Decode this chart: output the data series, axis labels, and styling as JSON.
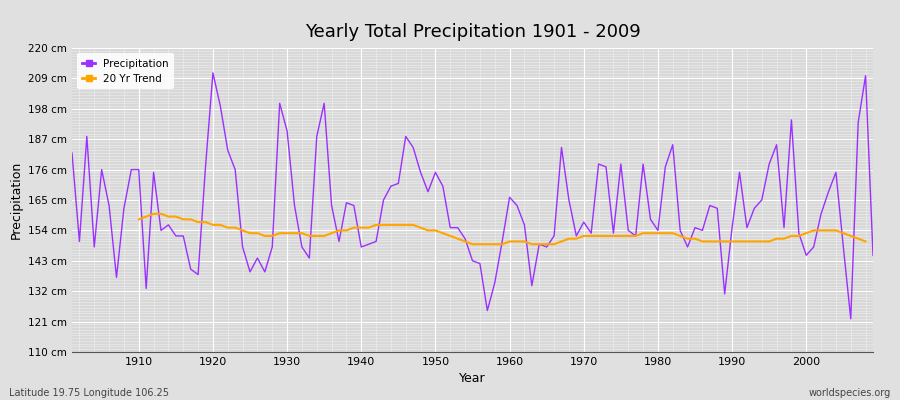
{
  "title": "Yearly Total Precipitation 1901 - 2009",
  "xlabel": "Year",
  "ylabel": "Precipitation",
  "subtitle": "Latitude 19.75 Longitude 106.25",
  "watermark": "worldspecies.org",
  "precip_color": "#9B30FF",
  "trend_color": "#FFA500",
  "fig_bg_color": "#E0E0E0",
  "plot_bg_color": "#D8D8D8",
  "ylim": [
    110,
    220
  ],
  "yticks": [
    110,
    121,
    132,
    143,
    154,
    165,
    176,
    187,
    198,
    209,
    220
  ],
  "xlim": [
    1901,
    2009
  ],
  "xticks": [
    1910,
    1920,
    1930,
    1940,
    1950,
    1960,
    1970,
    1980,
    1990,
    2000
  ],
  "years": [
    1901,
    1902,
    1903,
    1904,
    1905,
    1906,
    1907,
    1908,
    1909,
    1910,
    1911,
    1912,
    1913,
    1914,
    1915,
    1916,
    1917,
    1918,
    1919,
    1920,
    1921,
    1922,
    1923,
    1924,
    1925,
    1926,
    1927,
    1928,
    1929,
    1930,
    1931,
    1932,
    1933,
    1934,
    1935,
    1936,
    1937,
    1938,
    1939,
    1940,
    1941,
    1942,
    1943,
    1944,
    1945,
    1946,
    1947,
    1948,
    1949,
    1950,
    1951,
    1952,
    1953,
    1954,
    1955,
    1956,
    1957,
    1958,
    1959,
    1960,
    1961,
    1962,
    1963,
    1964,
    1965,
    1966,
    1967,
    1968,
    1969,
    1970,
    1971,
    1972,
    1973,
    1974,
    1975,
    1976,
    1977,
    1978,
    1979,
    1980,
    1981,
    1982,
    1983,
    1984,
    1985,
    1986,
    1987,
    1988,
    1989,
    1990,
    1991,
    1992,
    1993,
    1994,
    1995,
    1996,
    1997,
    1998,
    1999,
    2000,
    2001,
    2002,
    2003,
    2004,
    2005,
    2006,
    2007,
    2008,
    2009
  ],
  "precip": [
    182,
    150,
    188,
    148,
    176,
    163,
    137,
    162,
    176,
    176,
    133,
    175,
    154,
    156,
    152,
    152,
    140,
    138,
    177,
    211,
    199,
    183,
    176,
    148,
    139,
    144,
    139,
    148,
    200,
    190,
    163,
    148,
    144,
    188,
    200,
    163,
    150,
    164,
    163,
    148,
    149,
    150,
    165,
    170,
    171,
    188,
    184,
    175,
    168,
    175,
    170,
    155,
    155,
    151,
    143,
    142,
    125,
    135,
    150,
    166,
    163,
    156,
    134,
    149,
    148,
    152,
    184,
    165,
    152,
    157,
    153,
    178,
    177,
    153,
    178,
    154,
    152,
    178,
    158,
    154,
    177,
    185,
    154,
    148,
    155,
    154,
    163,
    162,
    131,
    155,
    175,
    155,
    162,
    165,
    178,
    185,
    155,
    194,
    153,
    145,
    148,
    160,
    168,
    175,
    148,
    122,
    193,
    210,
    145
  ],
  "trend": [
    null,
    null,
    null,
    null,
    null,
    null,
    null,
    null,
    null,
    158,
    159,
    160,
    160,
    159,
    159,
    158,
    158,
    157,
    157,
    156,
    156,
    155,
    155,
    154,
    153,
    153,
    152,
    152,
    153,
    153,
    153,
    153,
    152,
    152,
    152,
    153,
    154,
    154,
    155,
    155,
    155,
    156,
    156,
    156,
    156,
    156,
    156,
    155,
    154,
    154,
    153,
    152,
    151,
    150,
    149,
    149,
    149,
    149,
    149,
    150,
    150,
    150,
    149,
    149,
    149,
    149,
    150,
    151,
    151,
    152,
    152,
    152,
    152,
    152,
    152,
    152,
    152,
    153,
    153,
    153,
    153,
    153,
    152,
    151,
    151,
    150,
    150,
    150,
    150,
    150,
    150,
    150,
    150,
    150,
    150,
    151,
    151,
    152,
    152,
    153,
    154,
    154,
    154,
    154,
    153,
    152,
    151,
    150,
    null
  ]
}
